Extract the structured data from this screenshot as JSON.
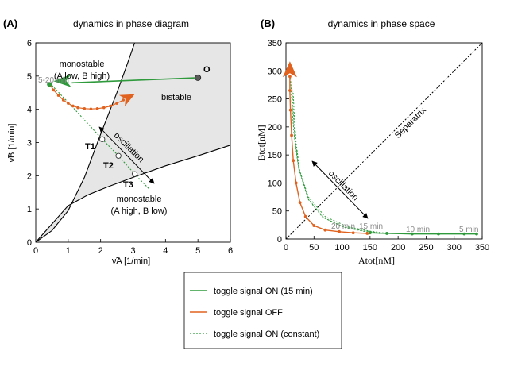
{
  "panels": {
    "a": {
      "label": "(A)",
      "title": "dynamics in phase diagram"
    },
    "b": {
      "label": "(B)",
      "title": "dynamics in phase space"
    }
  },
  "colors": {
    "green": "#2e9a3c",
    "orange": "#e0621e",
    "bistable_fill": "#e6e6e6",
    "marker_gray": "#5a5a5a"
  },
  "chart_data": [
    {
      "type": "line",
      "panel": "A",
      "title": "dynamics in phase diagram",
      "xlabel": "ν̃A [1/min]",
      "ylabel": "ν̃B [1/min]",
      "xlim": [
        0,
        6
      ],
      "ylim": [
        0,
        6
      ],
      "xticks": [
        "0",
        "1",
        "2",
        "3",
        "4",
        "5",
        "6"
      ],
      "yticks": [
        "0",
        "1",
        "2",
        "3",
        "4",
        "5",
        "6"
      ],
      "boundaries": {
        "upper": [
          [
            0,
            0
          ],
          [
            0.5,
            0.35
          ],
          [
            1,
            0.95
          ],
          [
            1.5,
            1.95
          ],
          [
            2,
            3.25
          ],
          [
            2.5,
            4.5
          ],
          [
            2.8,
            5.3
          ],
          [
            3.05,
            6
          ]
        ],
        "lower": [
          [
            0,
            0
          ],
          [
            0.5,
            0.55
          ],
          [
            1,
            1.1
          ],
          [
            1.6,
            1.42
          ],
          [
            2.2,
            1.66
          ],
          [
            3,
            1.95
          ],
          [
            4,
            2.3
          ],
          [
            5,
            2.6
          ],
          [
            6,
            2.92
          ]
        ]
      },
      "region_labels": {
        "mono_top_1": "monostable",
        "mono_top_2": "(A low, B high)",
        "bistable": "bistable",
        "mono_bottom_1": "monostable",
        "mono_bottom_2": "(A high, B low)"
      },
      "points": {
        "O": {
          "label": "O",
          "x": 5.0,
          "y": 4.95
        },
        "T1": {
          "label": "T1",
          "x": 2.05,
          "y": 3.1
        },
        "T2": {
          "label": "T2",
          "x": 2.55,
          "y": 2.6
        },
        "T3": {
          "label": "T3",
          "x": 3.05,
          "y": 2.05
        }
      },
      "time_label": "5-20 min",
      "oscillation_label": "oscillation",
      "series": [
        {
          "name": "toggle signal ON (15 min)",
          "style": "green-solid",
          "points": [
            [
              5.0,
              4.95
            ],
            [
              0.5,
              4.75
            ]
          ]
        },
        {
          "name": "toggle signal OFF",
          "style": "orange-dots",
          "points": [
            [
              0.45,
              4.72
            ],
            [
              0.55,
              4.58
            ],
            [
              0.7,
              4.42
            ],
            [
              0.85,
              4.28
            ],
            [
              1.0,
              4.18
            ],
            [
              1.15,
              4.1
            ],
            [
              1.3,
              4.05
            ],
            [
              1.5,
              4.02
            ],
            [
              1.7,
              4.01
            ],
            [
              1.9,
              4.02
            ],
            [
              2.1,
              4.05
            ],
            [
              2.3,
              4.1
            ],
            [
              2.5,
              4.18
            ],
            [
              2.7,
              4.28
            ]
          ]
        },
        {
          "name": "toggle signal ON (constant)",
          "style": "green-dashed",
          "points": [
            [
              0.5,
              4.72
            ],
            [
              1.2,
              4.0
            ],
            [
              2.05,
              3.1
            ],
            [
              2.55,
              2.6
            ],
            [
              3.05,
              2.05
            ],
            [
              3.5,
              1.6
            ]
          ]
        }
      ]
    },
    {
      "type": "line",
      "panel": "B",
      "title": "dynamics in phase space",
      "xlabel": "Atot[nM]",
      "ylabel": "Btot[nM]",
      "xlim": [
        0,
        350
      ],
      "ylim": [
        0,
        350
      ],
      "xticks": [
        "0",
        "50",
        "100",
        "150",
        "200",
        "250",
        "300",
        "350"
      ],
      "yticks": [
        "0",
        "50",
        "100",
        "150",
        "200",
        "250",
        "300",
        "350"
      ],
      "separatrix_label": "Separatrix",
      "oscillation_label": "oscillation",
      "time_labels": [
        {
          "text": "20 min",
          "x": 100,
          "y": 14
        },
        {
          "text": "15 min",
          "x": 145,
          "y": 14
        },
        {
          "text": "10 min",
          "x": 230,
          "y": 14
        },
        {
          "text": "5 min",
          "x": 320,
          "y": 14
        }
      ],
      "series": [
        {
          "name": "toggle signal ON (15 min)",
          "style": "green-solid",
          "points": [
            [
              340,
              9
            ],
            [
              318,
              9
            ],
            [
              272,
              9
            ],
            [
              225,
              9
            ],
            [
              180,
              10
            ],
            [
              150,
              11
            ]
          ]
        },
        {
          "name": "toggle signal OFF",
          "style": "orange-dots",
          "points": [
            [
              145,
              10
            ],
            [
              120,
              11
            ],
            [
              95,
              13
            ],
            [
              70,
              16
            ],
            [
              50,
              24
            ],
            [
              35,
              40
            ],
            [
              25,
              65
            ],
            [
              18,
              100
            ],
            [
              13,
              140
            ],
            [
              10,
              185
            ],
            [
              8,
              230
            ],
            [
              7,
              265
            ],
            [
              7,
              290
            ]
          ]
        },
        {
          "name": "toggle signal ON (constant)",
          "style": "green-dashed",
          "points": [
            [
              180,
              10
            ],
            [
              150,
              14
            ],
            [
              110,
              22
            ],
            [
              70,
              40
            ],
            [
              40,
              75
            ],
            [
              22,
              130
            ],
            [
              14,
              190
            ],
            [
              10,
              250
            ],
            [
              8,
              290
            ]
          ]
        }
      ]
    }
  ],
  "legend": [
    {
      "label": "toggle signal ON (15 min)",
      "style": "green-solid"
    },
    {
      "label": "toggle signal OFF",
      "style": "orange-solid"
    },
    {
      "label": "toggle signal ON (constant)",
      "style": "green-dashed"
    }
  ]
}
